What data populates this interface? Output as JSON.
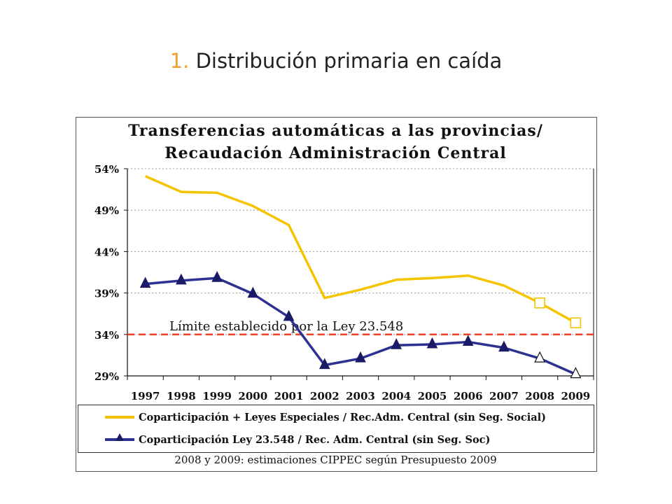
{
  "slide": {
    "title_number": "1.",
    "title_text": "Distribución primaria en caída"
  },
  "chart_data": {
    "type": "line",
    "title_line1": "Transferencias automáticas a las provincias/",
    "title_line2": "Recaudación Administración Central",
    "categories": [
      "1997",
      "1998",
      "1999",
      "2000",
      "2001",
      "2002",
      "2003",
      "2004",
      "2005",
      "2006",
      "2007",
      "2008",
      "2009"
    ],
    "y_ticks": [
      "29%",
      "34%",
      "39%",
      "44%",
      "49%",
      "54%"
    ],
    "ylim": [
      29,
      54
    ],
    "grid": "horizontal dashed",
    "series": [
      {
        "name": "Coparticipación + Leyes Especiales / Rec.Adm. Central (sin Seg. Social)",
        "color": "#f5c400",
        "marker": "none; hollow square on estimated years",
        "values": [
          53.1,
          51.2,
          51.1,
          49.5,
          47.2,
          38.4,
          39.4,
          40.6,
          40.8,
          41.1,
          39.9,
          37.8,
          35.4
        ]
      },
      {
        "name": "Coparticipación Ley 23.548 / Rec. Adm. Central (sin Seg. Soc)",
        "color": "#2e3192",
        "marker": "filled triangle; hollow triangle on estimated years",
        "values": [
          40.1,
          40.5,
          40.8,
          38.9,
          36.1,
          30.3,
          31.1,
          32.7,
          32.8,
          33.1,
          32.4,
          31.1,
          29.2
        ]
      }
    ],
    "estimated_from_index": 11,
    "reference_line": {
      "value": 34,
      "label": "Límite establecido por la Ley 23.548",
      "color": "#e8492a"
    },
    "note": "2008 y 2009: estimaciones CIPPEC según Presupuesto 2009"
  }
}
